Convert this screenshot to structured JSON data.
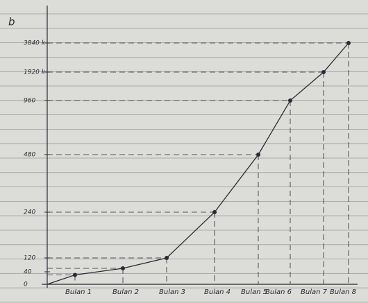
{
  "chart_data": {
    "type": "line",
    "title": "b",
    "categories": [
      "Bulan 1",
      "Bulan 2",
      "Bulan 3",
      "Bulan 4",
      "Bulan 5",
      "Bulan 6",
      "Bulan 7",
      "Bulan 8"
    ],
    "values": [
      30,
      60,
      120,
      240,
      480,
      960,
      1920,
      3840
    ],
    "color": "#2a2a33",
    "ylim": [
      0,
      3840
    ],
    "yticks": [
      0,
      40,
      120,
      240,
      480,
      960,
      {
        "value": 1920,
        "label": "1920 k"
      },
      {
        "value": 3840,
        "label": "3840 k"
      }
    ]
  }
}
